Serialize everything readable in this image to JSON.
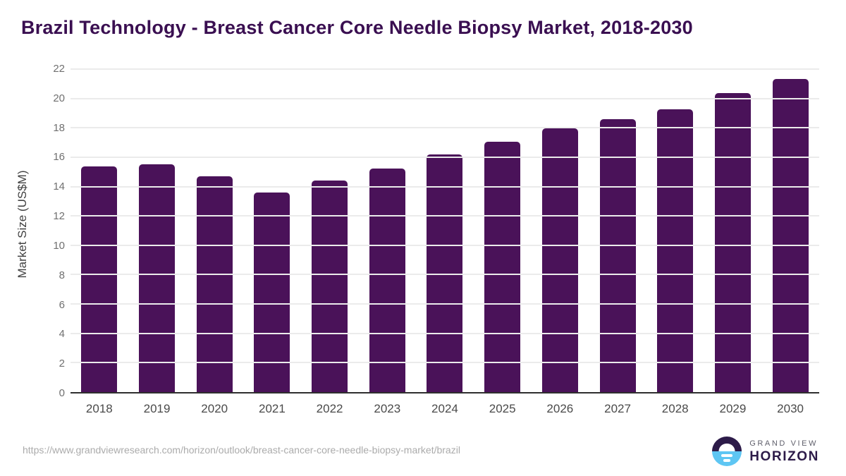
{
  "title": "Brazil Technology - Breast Cancer Core Needle Biopsy Market, 2018-2030",
  "chart_data": {
    "type": "bar",
    "title": "Brazil Technology - Breast Cancer Core Needle Biopsy Market, 2018-2030",
    "categories": [
      "2018",
      "2019",
      "2020",
      "2021",
      "2022",
      "2023",
      "2024",
      "2025",
      "2026",
      "2027",
      "2028",
      "2029",
      "2030"
    ],
    "values": [
      15.35,
      15.5,
      14.7,
      13.6,
      14.4,
      15.25,
      16.2,
      17.05,
      17.95,
      18.6,
      19.25,
      20.35,
      21.35
    ],
    "xlabel": "",
    "ylabel": "Market Size (US$M)",
    "ylim": [
      0,
      22
    ],
    "yticks": [
      0,
      2,
      4,
      6,
      8,
      10,
      12,
      14,
      16,
      18,
      20,
      22
    ],
    "grid": "horizontal",
    "legend": "none"
  },
  "footer": {
    "source_url": "https://www.grandviewresearch.com/horizon/outlook/breast-cancer-core-needle-biopsy-market/brazil",
    "logo_top": "GRAND VIEW",
    "logo_bottom": "HORIZON"
  },
  "colors": {
    "bar": "#4a1259",
    "title": "#3a0f51",
    "grid": "#ebebeb",
    "axis": "#2f2f2f",
    "tick": "#707070",
    "xtick": "#4a4a4a",
    "axis_title": "#414141",
    "url": "#ababab",
    "logo_purple": "#2d1b49",
    "logo_blue": "#5ec6f3",
    "logo_gray": "#5f5f6b"
  }
}
